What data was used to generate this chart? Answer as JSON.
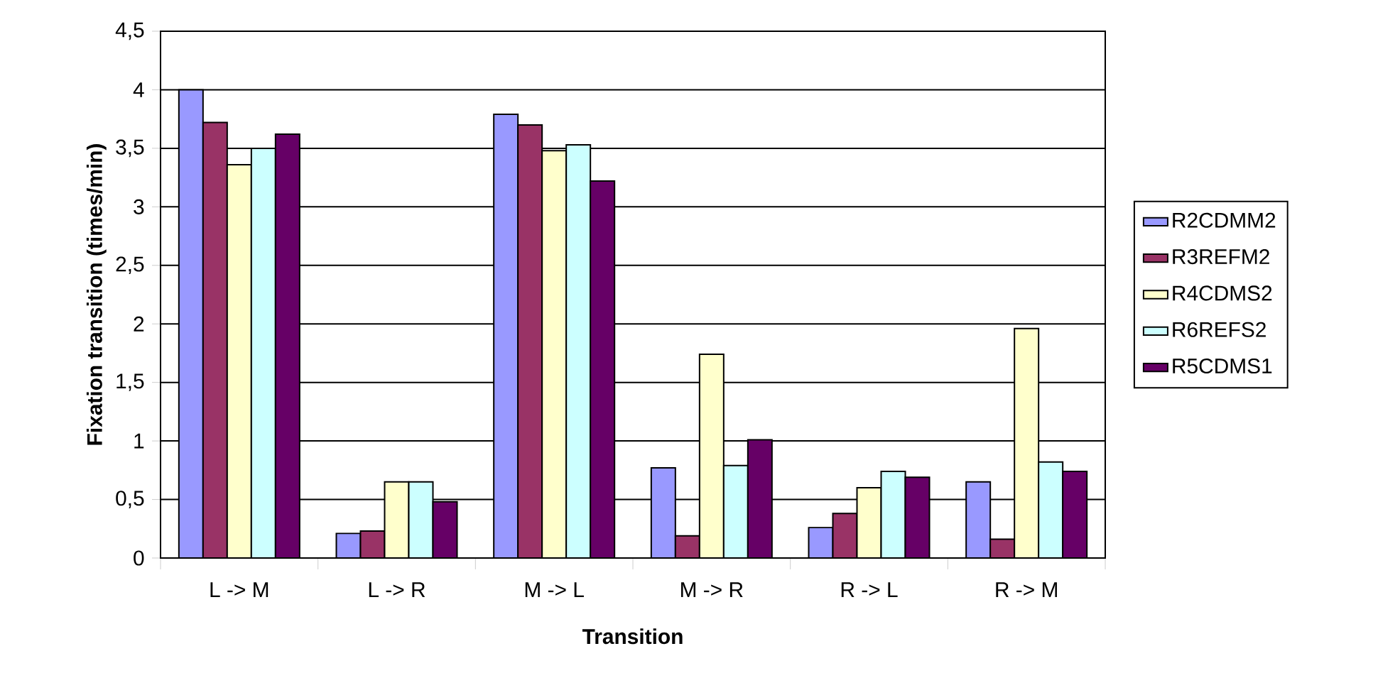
{
  "chart_data": {
    "type": "bar",
    "xlabel": "Transition",
    "ylabel": "Fixation transition (times/min)",
    "categories": [
      "L -> M",
      "L -> R",
      "M -> L",
      "M -> R",
      "R -> L",
      "R -> M"
    ],
    "series": [
      {
        "name": "R2CDMM2",
        "color": "#9999ff",
        "values": [
          4.0,
          0.21,
          3.79,
          0.77,
          0.26,
          0.65
        ]
      },
      {
        "name": "R3REFM2",
        "color": "#993366",
        "values": [
          3.72,
          0.23,
          3.7,
          0.19,
          0.38,
          0.16
        ]
      },
      {
        "name": "R4CDMS2",
        "color": "#ffffcc",
        "values": [
          3.36,
          0.65,
          3.48,
          1.74,
          0.6,
          1.96
        ]
      },
      {
        "name": "R6REFS2",
        "color": "#ccffff",
        "values": [
          3.5,
          0.65,
          3.53,
          0.79,
          0.74,
          0.82
        ]
      },
      {
        "name": "R5CDMS1",
        "color": "#660066",
        "values": [
          3.62,
          0.48,
          3.22,
          1.01,
          0.69,
          0.74
        ]
      }
    ],
    "ylim": [
      0,
      4.5
    ],
    "yticks": [
      0,
      {
        "value": 0.5,
        "label": "0,5"
      },
      1,
      {
        "value": 1.5,
        "label": "1,5"
      },
      2,
      {
        "value": 2.5,
        "label": "2,5"
      },
      3,
      {
        "value": 3.5,
        "label": "3,5"
      },
      4,
      {
        "value": 4.5,
        "label": "4,5"
      }
    ],
    "grid": "y",
    "legend": "right"
  }
}
